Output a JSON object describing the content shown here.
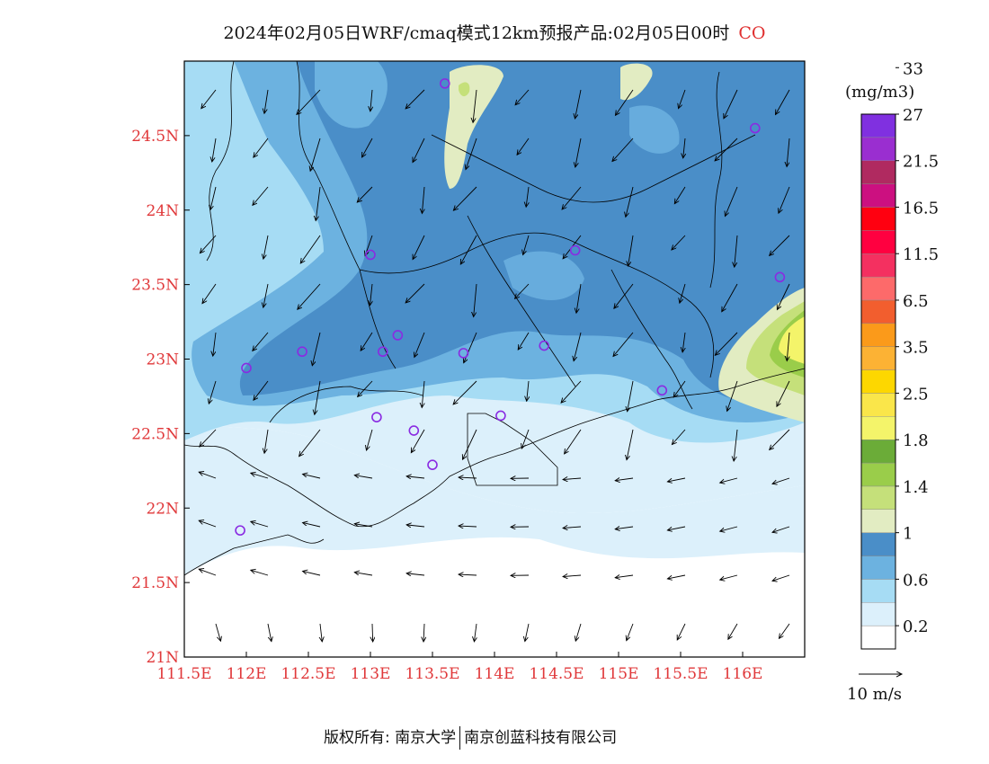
{
  "title": {
    "main": "2024年02月05日WRF/cmaq模式12km预报产品:02月05日00时",
    "species": "CO"
  },
  "axes": {
    "x_ticks": [
      "111.5E",
      "112E",
      "112.5E",
      "113E",
      "113.5E",
      "114E",
      "114.5E",
      "115E",
      "115.5E",
      "116E"
    ],
    "y_ticks": [
      "21N",
      "21.5N",
      "22N",
      "22.5N",
      "23N",
      "23.5N",
      "24N",
      "24.5N"
    ],
    "lon_range": [
      111.5,
      116.5
    ],
    "lat_range": [
      21,
      25
    ]
  },
  "legend": {
    "unit": "(mg/m3)",
    "labels": [
      "0.2",
      "0.6",
      "1",
      "1.4",
      "1.8",
      "2.5",
      "3.5",
      "6.5",
      "11.5",
      "16.5",
      "21.5",
      "27",
      "33"
    ],
    "colors": [
      "#ffffff",
      "#dcf0fb",
      "#a6dcf4",
      "#6cb2e0",
      "#4a8ec8",
      "#e2ecc2",
      "#c5e07a",
      "#9acd4a",
      "#6bac38",
      "#f4f46a",
      "#fae64a",
      "#fdd700",
      "#fcb234",
      "#fb9a1a",
      "#f25e2e",
      "#fd6a6a",
      "#f43060",
      "#ff0040",
      "#ff0010",
      "#cc1080",
      "#b02a60",
      "#9a2ed0",
      "#8030e0"
    ]
  },
  "wind_scale": {
    "label": "10 m/s"
  },
  "stations": [
    {
      "lon": 113.6,
      "lat": 24.85
    },
    {
      "lon": 116.1,
      "lat": 24.55
    },
    {
      "lon": 113.0,
      "lat": 23.7
    },
    {
      "lon": 114.65,
      "lat": 23.73
    },
    {
      "lon": 116.3,
      "lat": 23.55
    },
    {
      "lon": 113.22,
      "lat": 23.16
    },
    {
      "lon": 112.45,
      "lat": 23.05
    },
    {
      "lon": 113.1,
      "lat": 23.05
    },
    {
      "lon": 113.75,
      "lat": 23.04
    },
    {
      "lon": 114.4,
      "lat": 23.09
    },
    {
      "lon": 112.0,
      "lat": 22.94
    },
    {
      "lon": 115.35,
      "lat": 22.79
    },
    {
      "lon": 113.05,
      "lat": 22.61
    },
    {
      "lon": 114.05,
      "lat": 22.62
    },
    {
      "lon": 113.35,
      "lat": 22.52
    },
    {
      "lon": 113.5,
      "lat": 22.29
    },
    {
      "lon": 111.95,
      "lat": 21.85
    }
  ],
  "footer": {
    "copyright": "版权所有: 南京大学",
    "company": "南京创蓝科技有限公司"
  }
}
